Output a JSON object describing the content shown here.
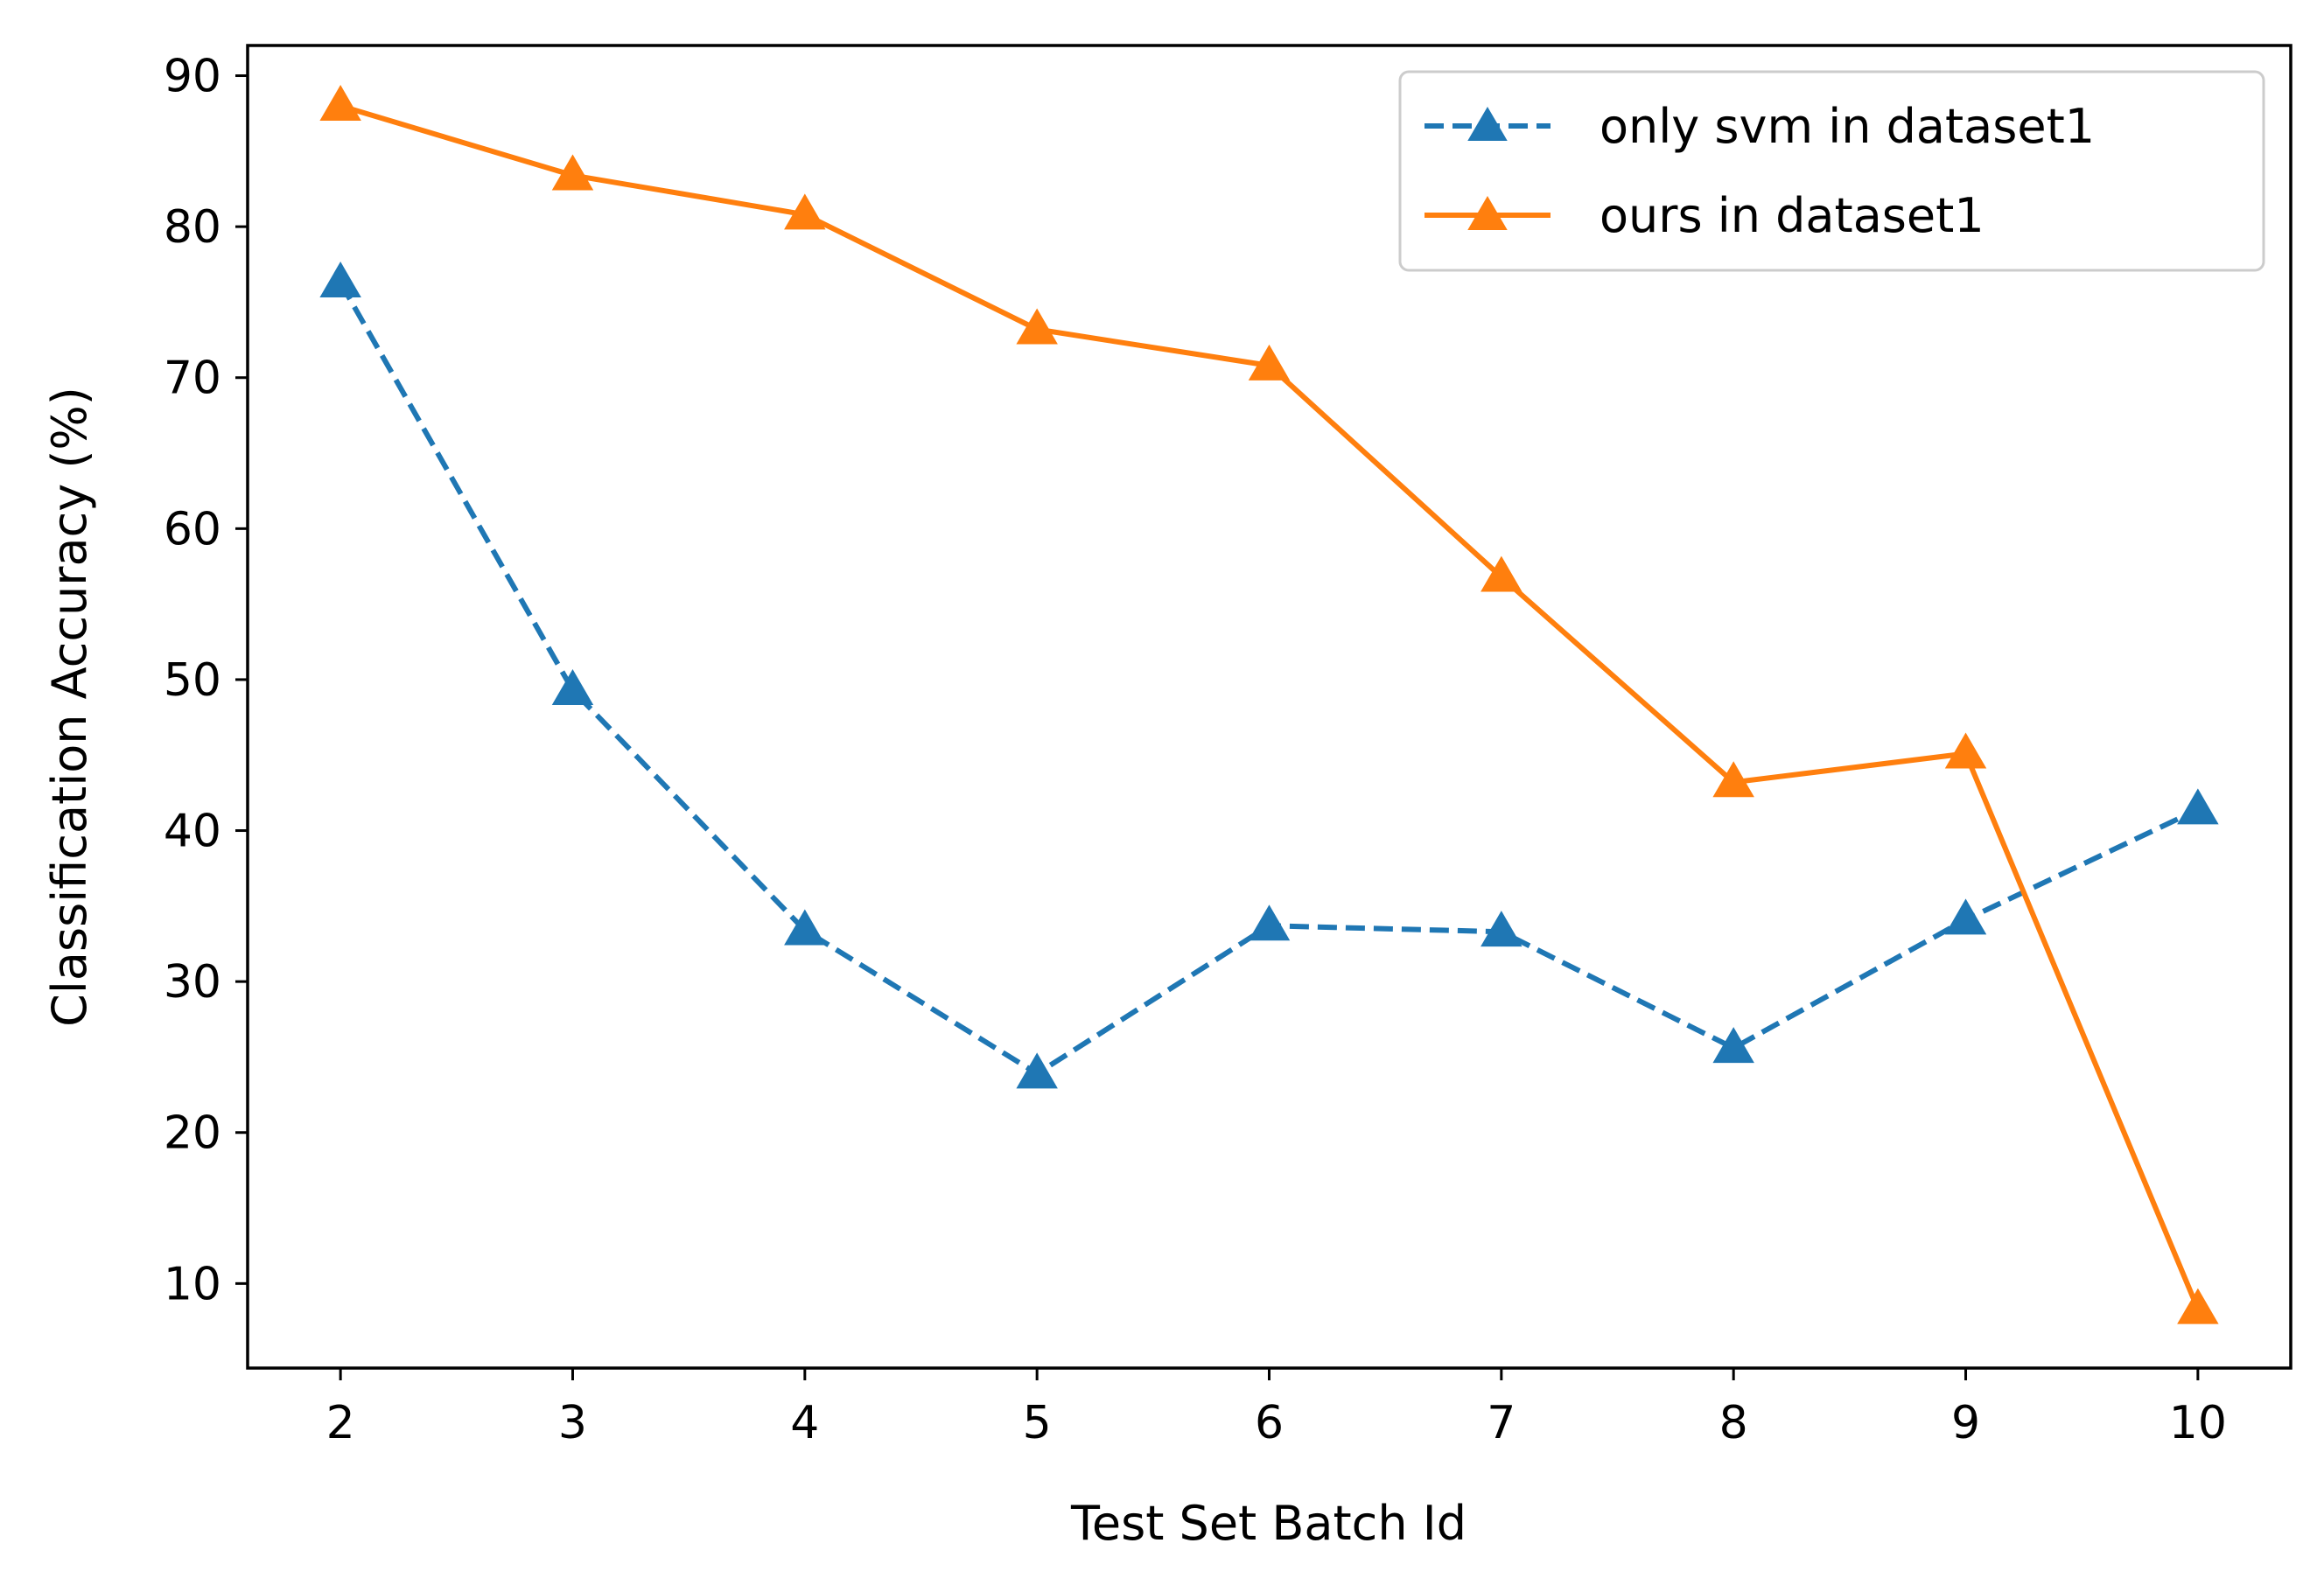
{
  "chart_data": {
    "type": "line",
    "title": "",
    "xlabel": "Test Set Batch Id",
    "ylabel": "Classification Accuracy (%)",
    "x": [
      2,
      3,
      4,
      5,
      6,
      7,
      8,
      9,
      10
    ],
    "xticks": [
      "2",
      "3",
      "4",
      "5",
      "6",
      "7",
      "8",
      "9",
      "10"
    ],
    "yticks": [
      "10",
      "20",
      "30",
      "40",
      "50",
      "60",
      "70",
      "80",
      "90"
    ],
    "xlim": [
      1.6,
      10.4
    ],
    "ylim": [
      4.4,
      92.0
    ],
    "grid": false,
    "legend_position": "top-right",
    "series": [
      {
        "name": "only svm in dataset1",
        "values": [
          76.3,
          49.3,
          33.4,
          23.9,
          33.7,
          33.3,
          25.6,
          34.1,
          41.4
        ],
        "color": "#1f77b4",
        "line_style": "dashed",
        "marker": "triangle-up"
      },
      {
        "name": "ours in dataset1",
        "values": [
          88.0,
          83.4,
          80.8,
          73.2,
          70.8,
          56.8,
          43.2,
          45.1,
          8.3
        ],
        "color": "#ff7f0e",
        "line_style": "solid",
        "marker": "triangle-up"
      }
    ]
  }
}
